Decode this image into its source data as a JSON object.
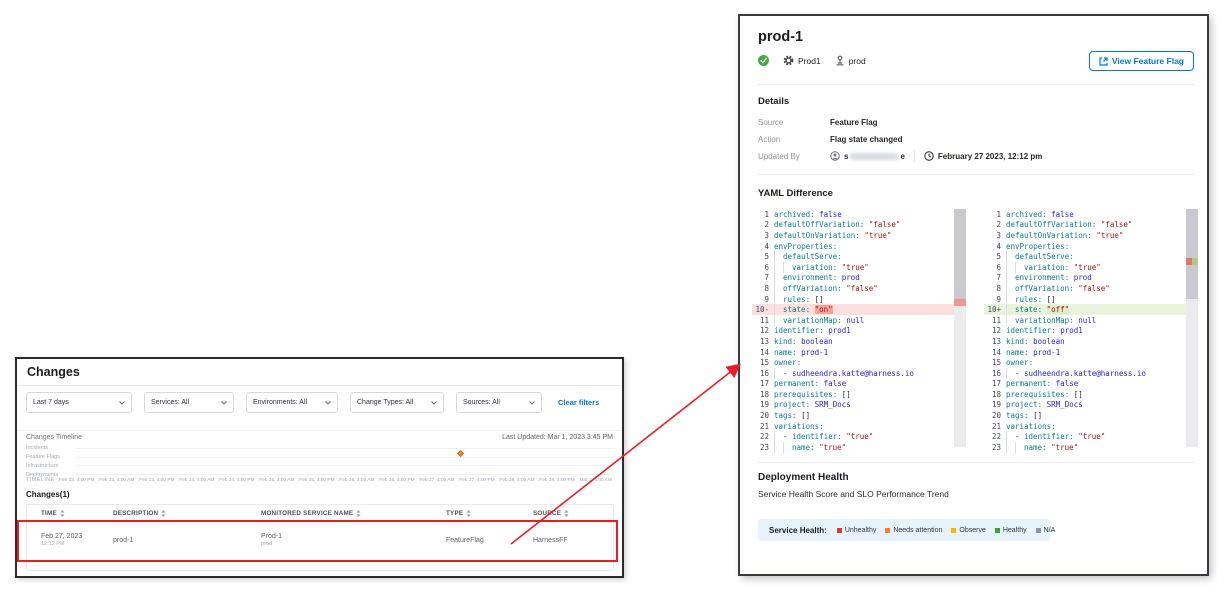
{
  "colors": {
    "accent_blue": "#0278d5",
    "highlight_red": "#ea1c24",
    "diff_del_bg": "#fbe0de",
    "diff_add_bg": "#e9f2da",
    "timeline_marker_orange": "#ff8f20"
  },
  "left_panel": {
    "title": "Changes",
    "filters": [
      {
        "value": "Last 7 days",
        "width": 106
      },
      {
        "value": "Services: All",
        "width": 90
      },
      {
        "value": "Environments: All",
        "width": 92
      },
      {
        "value": "Change Types: All",
        "width": 94
      },
      {
        "value": "Sources: All",
        "width": 86
      }
    ],
    "clear_filters_label": "Clear filters",
    "timeline": {
      "section_title": "Changes Timeline",
      "last_updated": "Last Updated: Mar 1, 2023 3:45 PM",
      "rows": [
        "Incidents",
        "Feature Flags",
        "Infrastructure",
        "Deployments"
      ],
      "axis_label": "TIMELINE",
      "ticks": [
        "Feb 22, 4:00 PM",
        "Feb 23, 4:00 AM",
        "Feb 23, 4:00 PM",
        "Feb 24, 4:00 AM",
        "Feb 24, 4:00 PM",
        "Feb 25, 4:00 AM",
        "Feb 25, 4:00 PM",
        "Feb 26, 4:00 AM",
        "Feb 26, 4:00 PM",
        "Feb 27, 4:00 AM",
        "Feb 27, 4:00 PM",
        "Feb 28, 4:00 AM",
        "Feb 28, 4:00 PM",
        "Mar 1, 4:00 AM"
      ],
      "marker": {
        "row": "Feature Flags",
        "shape": "diamond"
      }
    },
    "changes_count": "Changes(1)",
    "table": {
      "columns": [
        "TIME",
        "DESCRIPTION",
        "MONITORED SERVICE NAME",
        "TYPE",
        "SOURCE"
      ],
      "rows": [
        {
          "cells": [
            {
              "main": "Feb 27, 2023",
              "sub": "12:12 PM"
            },
            {
              "main": "prod-1"
            },
            {
              "main": "Prod-1",
              "sub": "prod"
            },
            {
              "main": "FeatureFlag"
            },
            {
              "main": "HarnessFF"
            }
          ]
        }
      ]
    }
  },
  "right_panel": {
    "title": "prod-1",
    "flag_name": "Prod1",
    "environment": "prod",
    "view_button_label": "View Feature Flag",
    "details": {
      "heading": "Details",
      "source_label": "Source",
      "source_value": "Feature Flag",
      "action_label": "Action",
      "action_value": "Flag state changed",
      "updated_label": "Updated By",
      "updated_by_start": "s",
      "updated_by_end": "e",
      "updated_time": "February 27 2023, 12:12 pm"
    },
    "yaml": {
      "heading": "YAML Difference",
      "panes": [
        {
          "id": "before",
          "lines": [
            {
              "n": "1",
              "ind": 0,
              "seg": [
                {
                  "t": "archived: ",
                  "c": "k"
                },
                {
                  "t": "false",
                  "c": "v"
                }
              ]
            },
            {
              "n": "2",
              "ind": 0,
              "seg": [
                {
                  "t": "defaultOffVariation: ",
                  "c": "k"
                },
                {
                  "t": "\"false\"",
                  "c": "s"
                }
              ]
            },
            {
              "n": "3",
              "ind": 0,
              "seg": [
                {
                  "t": "defaultOnVariation: ",
                  "c": "k"
                },
                {
                  "t": "\"true\"",
                  "c": "s"
                }
              ]
            },
            {
              "n": "4",
              "ind": 0,
              "seg": [
                {
                  "t": "envProperties:",
                  "c": "k"
                }
              ]
            },
            {
              "n": "5",
              "ind": 1,
              "seg": [
                {
                  "t": "defaultServe:",
                  "c": "k"
                }
              ]
            },
            {
              "n": "6",
              "ind": 2,
              "seg": [
                {
                  "t": "variation: ",
                  "c": "k"
                },
                {
                  "t": "\"true\"",
                  "c": "s"
                }
              ]
            },
            {
              "n": "7",
              "ind": 1,
              "seg": [
                {
                  "t": "environment: ",
                  "c": "k"
                },
                {
                  "t": "prod",
                  "c": "v"
                }
              ]
            },
            {
              "n": "8",
              "ind": 1,
              "seg": [
                {
                  "t": "offVariation: ",
                  "c": "k"
                },
                {
                  "t": "\"false\"",
                  "c": "s"
                }
              ]
            },
            {
              "n": "9",
              "ind": 1,
              "seg": [
                {
                  "t": "rules: ",
                  "c": "k"
                },
                {
                  "t": "[]",
                  "c": "p"
                }
              ]
            },
            {
              "n": "10-",
              "ind": 1,
              "mark": "del",
              "seg": [
                {
                  "t": "state: ",
                  "c": "k"
                },
                {
                  "t": "\"on\"",
                  "c": "s",
                  "hl": "del"
                }
              ]
            },
            {
              "n": "11",
              "ind": 1,
              "seg": [
                {
                  "t": "variationMap: ",
                  "c": "k"
                },
                {
                  "t": "null",
                  "c": "v"
                }
              ]
            },
            {
              "n": "12",
              "ind": 0,
              "seg": [
                {
                  "t": "identifier: ",
                  "c": "k"
                },
                {
                  "t": "prod1",
                  "c": "v"
                }
              ]
            },
            {
              "n": "13",
              "ind": 0,
              "seg": [
                {
                  "t": "kind: ",
                  "c": "k"
                },
                {
                  "t": "boolean",
                  "c": "v"
                }
              ]
            },
            {
              "n": "14",
              "ind": 0,
              "seg": [
                {
                  "t": "name: ",
                  "c": "k"
                },
                {
                  "t": "prod-1",
                  "c": "v"
                }
              ]
            },
            {
              "n": "15",
              "ind": 0,
              "seg": [
                {
                  "t": "owner:",
                  "c": "k"
                }
              ]
            },
            {
              "n": "16",
              "ind": 1,
              "seg": [
                {
                  "t": "- ",
                  "c": "p"
                },
                {
                  "t": "sudheendra.katte@harness.io",
                  "c": "v"
                }
              ]
            },
            {
              "n": "17",
              "ind": 0,
              "seg": [
                {
                  "t": "permanent: ",
                  "c": "k"
                },
                {
                  "t": "false",
                  "c": "v"
                }
              ]
            },
            {
              "n": "18",
              "ind": 0,
              "seg": [
                {
                  "t": "prerequisites: ",
                  "c": "k"
                },
                {
                  "t": "[]",
                  "c": "p"
                }
              ]
            },
            {
              "n": "19",
              "ind": 0,
              "seg": [
                {
                  "t": "project: ",
                  "c": "k"
                },
                {
                  "t": "SRM_Docs",
                  "c": "v"
                }
              ]
            },
            {
              "n": "20",
              "ind": 0,
              "seg": [
                {
                  "t": "tags: ",
                  "c": "k"
                },
                {
                  "t": "[]",
                  "c": "p"
                }
              ]
            },
            {
              "n": "21",
              "ind": 0,
              "seg": [
                {
                  "t": "variations:",
                  "c": "k"
                }
              ]
            },
            {
              "n": "22",
              "ind": 1,
              "seg": [
                {
                  "t": "- ",
                  "c": "p"
                },
                {
                  "t": "identifier: ",
                  "c": "k"
                },
                {
                  "t": "\"true\"",
                  "c": "s"
                }
              ]
            },
            {
              "n": "23",
              "ind": 2,
              "seg": [
                {
                  "t": "name: ",
                  "c": "k"
                },
                {
                  "t": "\"true\"",
                  "c": "s"
                }
              ]
            }
          ]
        },
        {
          "id": "after",
          "lines": [
            {
              "n": "1",
              "ind": 0,
              "seg": [
                {
                  "t": "archived: ",
                  "c": "k"
                },
                {
                  "t": "false",
                  "c": "v"
                }
              ]
            },
            {
              "n": "2",
              "ind": 0,
              "seg": [
                {
                  "t": "defaultOffVariation: ",
                  "c": "k"
                },
                {
                  "t": "\"false\"",
                  "c": "s"
                }
              ]
            },
            {
              "n": "3",
              "ind": 0,
              "seg": [
                {
                  "t": "defaultOnVariation: ",
                  "c": "k"
                },
                {
                  "t": "\"true\"",
                  "c": "s"
                }
              ]
            },
            {
              "n": "4",
              "ind": 0,
              "seg": [
                {
                  "t": "envProperties:",
                  "c": "k"
                }
              ]
            },
            {
              "n": "5",
              "ind": 1,
              "seg": [
                {
                  "t": "defaultServe:",
                  "c": "k"
                }
              ]
            },
            {
              "n": "6",
              "ind": 2,
              "seg": [
                {
                  "t": "variation: ",
                  "c": "k"
                },
                {
                  "t": "\"true\"",
                  "c": "s"
                }
              ]
            },
            {
              "n": "7",
              "ind": 1,
              "seg": [
                {
                  "t": "environment: ",
                  "c": "k"
                },
                {
                  "t": "prod",
                  "c": "v"
                }
              ]
            },
            {
              "n": "8",
              "ind": 1,
              "seg": [
                {
                  "t": "offVariation: ",
                  "c": "k"
                },
                {
                  "t": "\"false\"",
                  "c": "s"
                }
              ]
            },
            {
              "n": "9",
              "ind": 1,
              "seg": [
                {
                  "t": "rules: ",
                  "c": "k"
                },
                {
                  "t": "[]",
                  "c": "p"
                }
              ]
            },
            {
              "n": "10+",
              "ind": 1,
              "mark": "add",
              "seg": [
                {
                  "t": "state: ",
                  "c": "k"
                },
                {
                  "t": "\"off\"",
                  "c": "s",
                  "hl": "add"
                }
              ]
            },
            {
              "n": "11",
              "ind": 1,
              "seg": [
                {
                  "t": "variationMap: ",
                  "c": "k"
                },
                {
                  "t": "null",
                  "c": "v"
                }
              ]
            },
            {
              "n": "12",
              "ind": 0,
              "seg": [
                {
                  "t": "identifier: ",
                  "c": "k"
                },
                {
                  "t": "prod1",
                  "c": "v"
                }
              ]
            },
            {
              "n": "13",
              "ind": 0,
              "seg": [
                {
                  "t": "kind: ",
                  "c": "k"
                },
                {
                  "t": "boolean",
                  "c": "v"
                }
              ]
            },
            {
              "n": "14",
              "ind": 0,
              "seg": [
                {
                  "t": "name: ",
                  "c": "k"
                },
                {
                  "t": "prod-1",
                  "c": "v"
                }
              ]
            },
            {
              "n": "15",
              "ind": 0,
              "seg": [
                {
                  "t": "owner:",
                  "c": "k"
                }
              ]
            },
            {
              "n": "16",
              "ind": 1,
              "seg": [
                {
                  "t": "- ",
                  "c": "p"
                },
                {
                  "t": "sudheendra.katte@harness.io",
                  "c": "v"
                }
              ]
            },
            {
              "n": "17",
              "ind": 0,
              "seg": [
                {
                  "t": "permanent: ",
                  "c": "k"
                },
                {
                  "t": "false",
                  "c": "v"
                }
              ]
            },
            {
              "n": "18",
              "ind": 0,
              "seg": [
                {
                  "t": "prerequisites: ",
                  "c": "k"
                },
                {
                  "t": "[]",
                  "c": "p"
                }
              ]
            },
            {
              "n": "19",
              "ind": 0,
              "seg": [
                {
                  "t": "project: ",
                  "c": "k"
                },
                {
                  "t": "SRM_Docs",
                  "c": "v"
                }
              ]
            },
            {
              "n": "20",
              "ind": 0,
              "seg": [
                {
                  "t": "tags: ",
                  "c": "k"
                },
                {
                  "t": "[]",
                  "c": "p"
                }
              ]
            },
            {
              "n": "21",
              "ind": 0,
              "seg": [
                {
                  "t": "variations:",
                  "c": "k"
                }
              ]
            },
            {
              "n": "22",
              "ind": 1,
              "seg": [
                {
                  "t": "- ",
                  "c": "p"
                },
                {
                  "t": "identifier: ",
                  "c": "k"
                },
                {
                  "t": "\"true\"",
                  "c": "s"
                }
              ]
            },
            {
              "n": "23",
              "ind": 2,
              "seg": [
                {
                  "t": "name: ",
                  "c": "k"
                },
                {
                  "t": "\"true\"",
                  "c": "s"
                }
              ]
            }
          ]
        }
      ]
    },
    "deployment_health": {
      "heading": "Deployment Health",
      "subtitle": "Service Health Score and SLO Performance Trend",
      "legend_title": "Service Health:",
      "legend": [
        {
          "label": "Unhealthy",
          "color": "#e5342c"
        },
        {
          "label": "Needs attention",
          "color": "#ff7b26"
        },
        {
          "label": "Observe",
          "color": "#fcb400"
        },
        {
          "label": "Healthy",
          "color": "#3aa245"
        },
        {
          "label": "N/A",
          "color": "#8e93a7"
        }
      ]
    }
  }
}
